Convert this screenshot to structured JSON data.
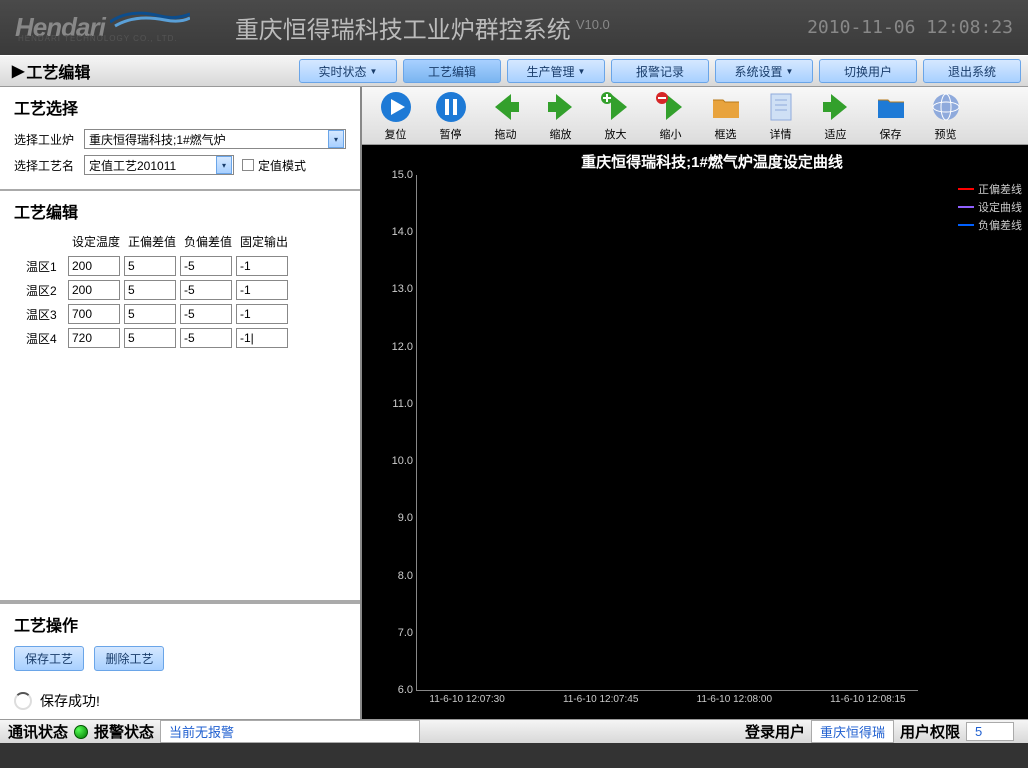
{
  "header": {
    "logo": "Hendari",
    "logo_sub": "HENDARI TECHNOLOGY CO., LTD.",
    "title": "重庆恒得瑞科技工业炉群控系统",
    "version": "V10.0",
    "datetime": "2010-11-06 12:08:23"
  },
  "page_label": "工艺编辑",
  "menu": [
    "实时状态",
    "工艺编辑",
    "生产管理",
    "报警记录",
    "系统设置",
    "切换用户",
    "退出系统"
  ],
  "menu_has_dropdown": [
    true,
    false,
    true,
    false,
    true,
    false,
    false
  ],
  "left": {
    "select_title": "工艺选择",
    "furnace_label": "选择工业炉",
    "furnace_value": "重庆恒得瑞科技;1#燃气炉",
    "process_label": "选择工艺名",
    "process_value": "定值工艺201011",
    "fixed_mode_label": "定值模式",
    "edit_title": "工艺编辑",
    "columns": [
      "设定温度",
      "正偏差值",
      "负偏差值",
      "固定输出"
    ],
    "rows": [
      {
        "label": "温区1",
        "values": [
          "200",
          "5",
          "-5",
          "-1"
        ]
      },
      {
        "label": "温区2",
        "values": [
          "200",
          "5",
          "-5",
          "-1"
        ]
      },
      {
        "label": "温区3",
        "values": [
          "700",
          "5",
          "-5",
          "-1"
        ]
      },
      {
        "label": "温区4",
        "values": [
          "720",
          "5",
          "-5",
          "-1|"
        ]
      }
    ],
    "ops_title": "工艺操作",
    "save_btn": "保存工艺",
    "delete_btn": "删除工艺",
    "status_msg": "保存成功!"
  },
  "toolbar": [
    {
      "name": "reset-icon",
      "label": "复位",
      "color": "#1e7ad6",
      "glyph": "play"
    },
    {
      "name": "pause-icon",
      "label": "暂停",
      "color": "#1e7ad6",
      "glyph": "pause"
    },
    {
      "name": "drag-icon",
      "label": "拖动",
      "color": "#33a02c",
      "glyph": "arrowL"
    },
    {
      "name": "zoom-icon",
      "label": "缩放",
      "color": "#33a02c",
      "glyph": "arrowR"
    },
    {
      "name": "zoomin-icon",
      "label": "放大",
      "color": "#33a02c",
      "glyph": "plus"
    },
    {
      "name": "zoomout-icon",
      "label": "缩小",
      "color": "#d62728",
      "glyph": "minus"
    },
    {
      "name": "select-icon",
      "label": "框选",
      "color": "#e8a33d",
      "glyph": "folder"
    },
    {
      "name": "detail-icon",
      "label": "详情",
      "color": "#8faadc",
      "glyph": "doc"
    },
    {
      "name": "fit-icon",
      "label": "适应",
      "color": "#33a02c",
      "glyph": "arrowR"
    },
    {
      "name": "save-icon",
      "label": "保存",
      "color": "#1e7ad6",
      "glyph": "folder"
    },
    {
      "name": "preview-icon",
      "label": "预览",
      "color": "#1e7ad6",
      "glyph": "globe"
    }
  ],
  "chart": {
    "title": "重庆恒得瑞科技;1#燃气炉温度设定曲线",
    "y_ticks": [
      "15.0",
      "14.0",
      "13.0",
      "12.0",
      "11.0",
      "10.0",
      "9.0",
      "8.0",
      "7.0",
      "6.0"
    ],
    "x_ticks": [
      "11-6-10 12:07:30",
      "11-6-10 12:07:45",
      "11-6-10 12:08:00",
      "11-6-10 12:08:15"
    ],
    "legend": [
      {
        "label": "正偏差线",
        "color": "#ff0000"
      },
      {
        "label": "设定曲线",
        "color": "#9060ff"
      },
      {
        "label": "负偏差线",
        "color": "#0060ff"
      }
    ],
    "background": "#000000",
    "grid_color": "#222222",
    "text_color": "#cccccc"
  },
  "statusbar": {
    "comm_label": "通讯状态",
    "alarm_label": "报警状态",
    "alarm_value": "当前无报警",
    "user_label": "登录用户",
    "user_value": "重庆恒得瑞",
    "priv_label": "用户权限",
    "priv_value": "5"
  }
}
